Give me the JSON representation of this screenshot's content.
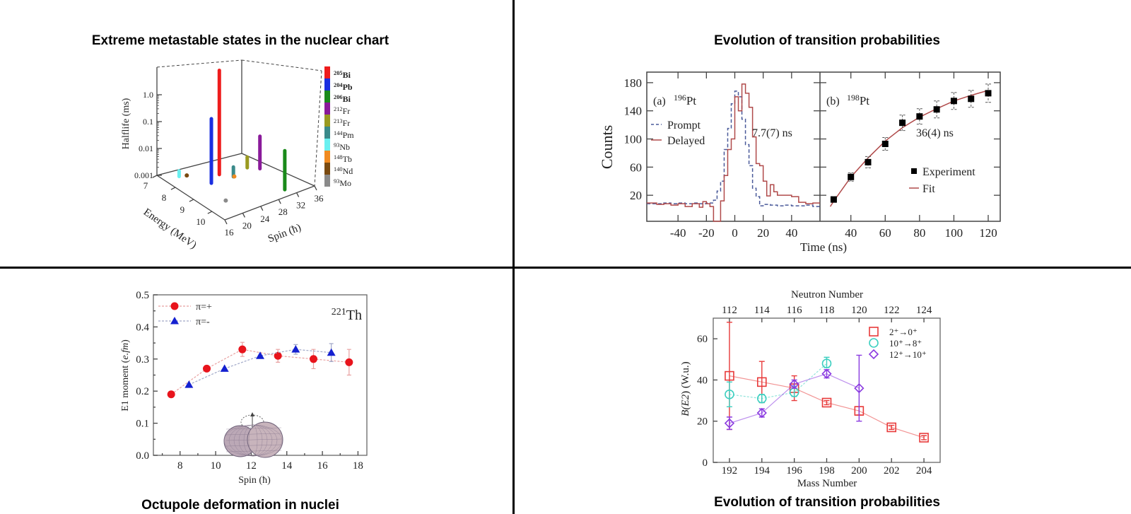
{
  "panels": {
    "top_left_title": "Extreme metastable states in the nuclear chart",
    "top_right_title": "Evolution of transition probabilities",
    "bottom_left_caption": "Octupole deformation in nuclei",
    "bottom_right_caption": "Evolution of transition probabilities"
  },
  "chart_data": [
    {
      "type": "bar3d",
      "title": "Extreme metastable states in the nuclear chart",
      "zlabel": "Halflife (ms)",
      "xlabel": "Energy (MeV)",
      "ylabel": "Spin (ħ)",
      "z_scale": "log",
      "z_ticks": [
        "0.001",
        "0.01",
        "0.1",
        "1.0"
      ],
      "x_ticks": [
        "7",
        "8",
        "9",
        "10"
      ],
      "y_ticks": [
        "16",
        "20",
        "24",
        "28",
        "32",
        "36"
      ],
      "x_range": [
        7,
        10.7
      ],
      "y_range": [
        16,
        36
      ],
      "legend_position": "right",
      "series": [
        {
          "mass": "205",
          "symbol": "Bi",
          "bold": true,
          "color": "#ee1c1c",
          "energy": 8.2,
          "spin": 25,
          "halflife": 7.5
        },
        {
          "mass": "204",
          "symbol": "Pb",
          "bold": true,
          "color": "#1a2ee0",
          "energy": 8.5,
          "spin": 22,
          "halflife": 0.25
        },
        {
          "mass": "206",
          "symbol": "Bi",
          "bold": true,
          "color": "#1a8a1a",
          "energy": 10.3,
          "spin": 31,
          "halflife": 0.028
        },
        {
          "mass": "212",
          "symbol": "Fr",
          "bold": false,
          "color": "#8a1a9a",
          "energy": 8.7,
          "spin": 32,
          "halflife": 0.016
        },
        {
          "mass": "213",
          "symbol": "Fr",
          "bold": false,
          "color": "#9a9a20",
          "energy": 8.4,
          "spin": 30.4,
          "halflife": 0.0025
        },
        {
          "mass": "144",
          "symbol": "Pm",
          "bold": false,
          "color": "#3a8a8a",
          "energy": 8.6,
          "spin": 26.5,
          "halflife": 0.0023
        },
        {
          "mass": "93",
          "symbol": "Nb",
          "bold": false,
          "color": "#6af0f0",
          "energy": 7.5,
          "spin": 18.9,
          "halflife": 0.0016
        },
        {
          "mass": "148",
          "symbol": "Tb",
          "bold": false,
          "color": "#f08a20",
          "energy": 8.6,
          "spin": 26.7,
          "halflife": 0.001
        },
        {
          "mass": "140",
          "symbol": "Nd",
          "bold": false,
          "color": "#7a4a10",
          "energy": 7.6,
          "spin": 20.2,
          "halflife": 0.001
        },
        {
          "mass": "93",
          "symbol": "Mo",
          "bold": false,
          "color": "#8a8a8a",
          "energy": 9.7,
          "spin": 20.3,
          "halflife": 0.001
        }
      ]
    },
    {
      "type": "line",
      "title": "Evolution of transition probabilities",
      "ylabel": "Counts",
      "xlabel": "Time (ns)",
      "ylim": [
        -17,
        195
      ],
      "y_ticks": [
        "20",
        "60",
        "100",
        "140",
        "180"
      ],
      "panels": [
        {
          "label": "(a)",
          "isotope": {
            "mass": "196",
            "symbol": "Pt"
          },
          "annotation": "7.7(7) ns",
          "xlim": [
            -62,
            60
          ],
          "x_ticks": [
            "-40",
            "-20",
            "0",
            "20",
            "40"
          ],
          "series": [
            {
              "name": "Prompt",
              "style": "dashed",
              "color": "#4a5a9a",
              "steps": [
                [
                  -62,
                  8
                ],
                [
                  -55,
                  8
                ],
                [
                  -50,
                  9
                ],
                [
                  -45,
                  8
                ],
                [
                  -40,
                  9
                ],
                [
                  -35,
                  8
                ],
                [
                  -30,
                  9
                ],
                [
                  -25,
                  8
                ],
                [
                  -20,
                  9
                ],
                [
                  -15,
                  13
                ],
                [
                  -12.5,
                  26
                ],
                [
                  -10,
                  40
                ],
                [
                  -7.5,
                  85
                ],
                [
                  -5,
                  115
                ],
                [
                  -2.5,
                  150
                ],
                [
                  0,
                  168
                ],
                [
                  2.5,
                  160
                ],
                [
                  5,
                  128
                ],
                [
                  7.5,
                  92
                ],
                [
                  10,
                  62
                ],
                [
                  12.5,
                  30
                ],
                [
                  15,
                  18
                ],
                [
                  17.5,
                  5
                ],
                [
                  20,
                  7
                ],
                [
                  25,
                  6
                ],
                [
                  30,
                  5
                ],
                [
                  35,
                  6
                ],
                [
                  40,
                  5
                ],
                [
                  45,
                  5
                ],
                [
                  50,
                  6
                ],
                [
                  55,
                  4
                ]
              ]
            },
            {
              "name": "Delayed",
              "style": "solid",
              "color": "#b04a4a",
              "steps": [
                [
                  -62,
                  9
                ],
                [
                  -55,
                  7
                ],
                [
                  -50,
                  8
                ],
                [
                  -45,
                  6
                ],
                [
                  -40,
                  8
                ],
                [
                  -35,
                  4
                ],
                [
                  -30,
                  8
                ],
                [
                  -25,
                  3
                ],
                [
                  -22.5,
                  11
                ],
                [
                  -20,
                  8
                ],
                [
                  -17.5,
                  4
                ],
                [
                  -15,
                  -17
                ],
                [
                  -10,
                  12
                ],
                [
                  -7.5,
                  48
                ],
                [
                  -5,
                  85
                ],
                [
                  -2.5,
                  100
                ],
                [
                  0,
                  160
                ],
                [
                  2.5,
                  140
                ],
                [
                  5,
                  178
                ],
                [
                  7.5,
                  165
                ],
                [
                  10,
                  145
                ],
                [
                  12.5,
                  103
                ],
                [
                  15,
                  65
                ],
                [
                  17.5,
                  62
                ],
                [
                  20,
                  40
                ],
                [
                  22.5,
                  19
                ],
                [
                  25,
                  35
                ],
                [
                  27.5,
                  25
                ],
                [
                  30,
                  20
                ],
                [
                  35,
                  20
                ],
                [
                  40,
                  18
                ],
                [
                  45,
                  10
                ],
                [
                  50,
                  8
                ],
                [
                  55,
                  9
                ]
              ]
            }
          ]
        },
        {
          "label": "(b)",
          "isotope": {
            "mass": "198",
            "symbol": "Pt"
          },
          "annotation": "36(4) ns",
          "xlim": [
            22,
            127
          ],
          "x_ticks": [
            "40",
            "60",
            "80",
            "100",
            "120"
          ],
          "experiment": {
            "name": "Experiment",
            "color": "#000000",
            "points": [
              [
                30,
                14,
                4
              ],
              [
                40,
                46,
                6
              ],
              [
                50,
                67,
                8
              ],
              [
                60,
                93,
                9
              ],
              [
                70,
                123,
                11
              ],
              [
                80,
                132,
                11
              ],
              [
                90,
                142,
                12
              ],
              [
                100,
                154,
                12
              ],
              [
                110,
                157,
                12
              ],
              [
                120,
                165,
                13
              ]
            ]
          },
          "fit": {
            "name": "Fit",
            "color": "#b04a4a",
            "points": [
              [
                28,
                4
              ],
              [
                30,
                11.6
              ],
              [
                40,
                45.8
              ],
              [
                50,
                73
              ],
              [
                60,
                97
              ],
              [
                70,
                116
              ],
              [
                80,
                131
              ],
              [
                90,
                143
              ],
              [
                100,
                154
              ],
              [
                110,
                162
              ],
              [
                120,
                169
              ]
            ]
          }
        }
      ]
    },
    {
      "type": "scatter",
      "title": "Octupole deformation in nuclei",
      "xlabel": "Spin (ħ)",
      "ylabel_parts": [
        "E1 moment (",
        "e.fm",
        ")"
      ],
      "isotope": {
        "mass": "221",
        "symbol": "Th"
      },
      "xlim": [
        6.5,
        18.5
      ],
      "ylim": [
        0,
        0.5
      ],
      "x_ticks": [
        "8",
        "10",
        "12",
        "14",
        "16",
        "18"
      ],
      "y_ticks": [
        "0.0",
        "0.1",
        "0.2",
        "0.3",
        "0.4",
        "0.5"
      ],
      "legend_position": "top-left",
      "series": [
        {
          "name": "π=+",
          "marker": "circle",
          "color": "#e8141c",
          "line_color": "#e8a0a0",
          "points": [
            [
              7.5,
              0.19,
              0
            ],
            [
              9.5,
              0.27,
              0
            ],
            [
              11.5,
              0.33,
              0.022
            ],
            [
              13.5,
              0.31,
              0.02
            ],
            [
              15.5,
              0.3,
              0.03
            ],
            [
              17.5,
              0.29,
              0.04
            ]
          ]
        },
        {
          "name": "π=-",
          "marker": "triangle",
          "color": "#1420d0",
          "line_color": "#a0a8c8",
          "points": [
            [
              8.5,
              0.22,
              0
            ],
            [
              10.5,
              0.27,
              0
            ],
            [
              12.5,
              0.31,
              0
            ],
            [
              14.5,
              0.33,
              0.015
            ],
            [
              16.5,
              0.32,
              0.028
            ]
          ]
        }
      ]
    },
    {
      "type": "scatter",
      "title": "Evolution of transition probabilities",
      "xlabel": "Mass Number",
      "x2label": "Neutron Number",
      "ylabel_parts": [
        "B(",
        "E2",
        ") (W.u.)"
      ],
      "xlim": [
        191,
        205
      ],
      "ylim": [
        0,
        70
      ],
      "x_ticks": [
        "192",
        "194",
        "196",
        "198",
        "200",
        "202",
        "204"
      ],
      "x2_ticks": [
        "112",
        "114",
        "116",
        "118",
        "120",
        "122",
        "124"
      ],
      "y_ticks": [
        "0",
        "20",
        "40",
        "60"
      ],
      "legend_position": "top-right",
      "series": [
        {
          "name": "2⁺→0⁺",
          "marker": "square",
          "color": "#e83a3a",
          "line": "solid",
          "points": [
            [
              192,
              42,
              16,
              68
            ],
            [
              194,
              39,
              29,
              49
            ],
            [
              196,
              36,
              30,
              42
            ],
            [
              198,
              29,
              28,
              30
            ],
            [
              200,
              25,
              23,
              27
            ],
            [
              202,
              17,
              16,
              18
            ],
            [
              204,
              12,
              11,
              13
            ]
          ]
        },
        {
          "name": "10⁺→8⁺",
          "marker": "circle",
          "color": "#3ccfc0",
          "line": "dashed",
          "points": [
            [
              192,
              33,
              27,
              39
            ],
            [
              194,
              31,
              29,
              33
            ],
            [
              196,
              34,
              32,
              37
            ],
            [
              198,
              48,
              46,
              51
            ]
          ]
        },
        {
          "name": "12⁺→10⁺",
          "marker": "diamond",
          "color": "#8a3ae0",
          "line": "solid",
          "points": [
            [
              192,
              19,
              16,
              22
            ],
            [
              194,
              24,
              22,
              26
            ],
            [
              196,
              38,
              36,
              40
            ],
            [
              198,
              43,
              41,
              45
            ],
            [
              200,
              36,
              20,
              52
            ]
          ]
        }
      ]
    }
  ]
}
